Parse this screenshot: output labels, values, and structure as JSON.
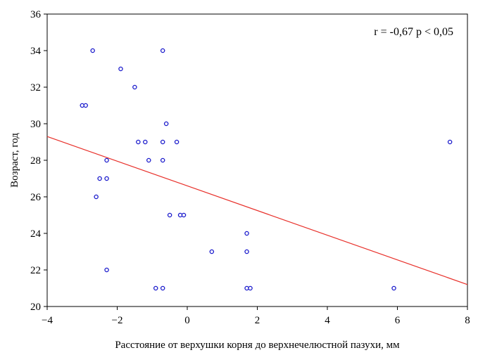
{
  "chart_data": {
    "type": "scatter",
    "title": "",
    "xlabel": "Расстояние от верхушки корня до верхнечелюстной пазухи, мм",
    "ylabel": "Возраст, год",
    "xlim": [
      -4,
      8
    ],
    "ylim": [
      20,
      36
    ],
    "xticks": [
      -4,
      -2,
      0,
      2,
      4,
      6,
      8
    ],
    "yticks": [
      20,
      22,
      24,
      26,
      28,
      30,
      32,
      34,
      36
    ],
    "grid": false,
    "annotation": "r = -0,67 p < 0,05",
    "points": [
      {
        "x": -2.7,
        "y": 34
      },
      {
        "x": -0.7,
        "y": 34
      },
      {
        "x": -1.9,
        "y": 33
      },
      {
        "x": -1.5,
        "y": 32
      },
      {
        "x": -3.0,
        "y": 31
      },
      {
        "x": -2.9,
        "y": 31
      },
      {
        "x": -0.6,
        "y": 30
      },
      {
        "x": -1.4,
        "y": 29
      },
      {
        "x": -1.2,
        "y": 29
      },
      {
        "x": -0.7,
        "y": 29
      },
      {
        "x": -0.3,
        "y": 29
      },
      {
        "x": 7.5,
        "y": 29
      },
      {
        "x": -2.3,
        "y": 28
      },
      {
        "x": -1.1,
        "y": 28
      },
      {
        "x": -0.7,
        "y": 28
      },
      {
        "x": -2.5,
        "y": 27
      },
      {
        "x": -2.3,
        "y": 27
      },
      {
        "x": -2.6,
        "y": 26
      },
      {
        "x": -0.5,
        "y": 25
      },
      {
        "x": -0.2,
        "y": 25
      },
      {
        "x": -0.1,
        "y": 25
      },
      {
        "x": 1.7,
        "y": 24
      },
      {
        "x": 0.7,
        "y": 23
      },
      {
        "x": 1.7,
        "y": 23
      },
      {
        "x": -2.3,
        "y": 22
      },
      {
        "x": -0.9,
        "y": 21
      },
      {
        "x": -0.7,
        "y": 21
      },
      {
        "x": 1.7,
        "y": 21
      },
      {
        "x": 1.8,
        "y": 21
      },
      {
        "x": 5.9,
        "y": 21
      }
    ],
    "regression_line": {
      "x": [
        -4,
        8
      ],
      "y": [
        29.3,
        21.2
      ]
    },
    "colors": {
      "points": "#1a1acc",
      "line": "#e8302a",
      "axis": "#000000"
    }
  }
}
